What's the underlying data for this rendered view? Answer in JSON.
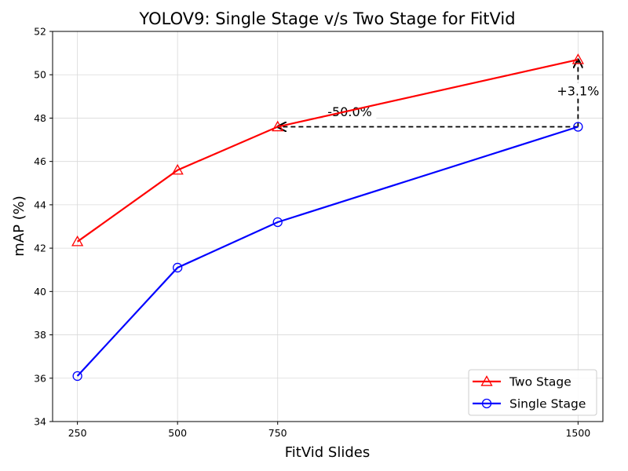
{
  "chart_data": {
    "type": "line",
    "title": "YOLOV9: Single Stage v/s Two Stage for FitVid",
    "xlabel": "FitVid Slides",
    "ylabel": "mAP (%)",
    "x": [
      250,
      500,
      750,
      1500
    ],
    "x_ticks": [
      250,
      500,
      750,
      1500
    ],
    "xlim": [
      188,
      1562
    ],
    "ylim": [
      34,
      52
    ],
    "y_ticks": [
      34,
      36,
      38,
      40,
      42,
      44,
      46,
      48,
      50,
      52
    ],
    "grid": true,
    "legend_position": "lower-right",
    "series": [
      {
        "name": "Two Stage",
        "values": [
          42.3,
          45.6,
          47.6,
          50.7
        ],
        "color": "#ff0000",
        "marker": "triangle"
      },
      {
        "name": "Single Stage",
        "values": [
          36.1,
          41.1,
          43.2,
          47.6
        ],
        "color": "#0000ff",
        "marker": "circle"
      }
    ],
    "annotations": [
      {
        "text": "-50.0%",
        "from": [
          1500,
          47.6
        ],
        "to": [
          750,
          47.6
        ],
        "label_at": [
          930,
          48.2
        ]
      },
      {
        "text": "+3.1%",
        "from": [
          1500,
          47.6
        ],
        "to": [
          1500,
          50.7
        ],
        "label_at": [
          1500,
          49.15
        ]
      }
    ]
  }
}
